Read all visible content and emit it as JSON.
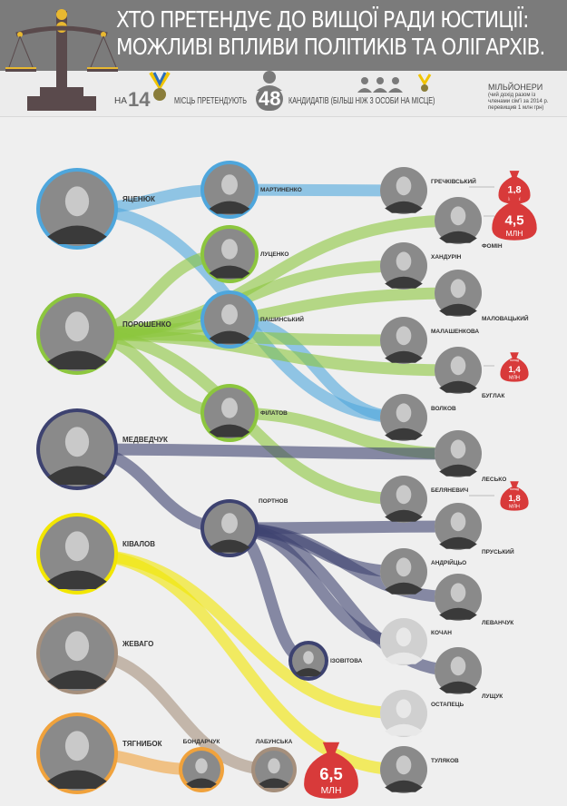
{
  "header": {
    "title_line1": "ХТО ПРЕТЕНДУЄ ДО ВИЩОЇ РАДИ ЮСТИЦІЇ:",
    "title_line2": "МОЖЛИВІ ВПЛИВИ ПОЛІТИКІВ ТА ОЛІГАРХІВ.",
    "logo_icon": "scales-icon"
  },
  "summary": {
    "prefix": "НА",
    "seats": "14",
    "seats_text": "МІСЦЬ ПРЕТЕНДУЮТЬ",
    "candidates": "48",
    "candidates_text": "КАНДИДАТІВ (БІЛЬШ НІЖ 3 ОСОБИ НА МІСЦЕ)",
    "legend_title": "МІЛЬЙОНЕРИ",
    "legend_note": [
      "(чий дохід разом із",
      "членами сім'ї за 2014 р.",
      "перевищив 1 млн грн)"
    ]
  },
  "colors": {
    "header": "#7b7b7b",
    "money": "#d83a3a",
    "yatseniuk": "#4ea6dc",
    "poroshenko": "#8cc63e",
    "medvedchuk": "#3d4270",
    "kivalov": "#f2e600",
    "zhevago": "#a58f7c",
    "tiahnybok": "#f0a23c"
  },
  "politicians": [
    {
      "name": "ЯЦЕНЮК",
      "color": "yatseniuk"
    },
    {
      "name": "ПОРОШЕНКО",
      "color": "poroshenko"
    },
    {
      "name": "МЕДВЕДЧУК",
      "color": "medvedchuk"
    },
    {
      "name": "КІВАЛОВ",
      "color": "kivalov"
    },
    {
      "name": "ЖЕВАГО",
      "color": "zhevago"
    },
    {
      "name": "ТЯГНИБОК",
      "color": "tiahnybok"
    }
  ],
  "intermediaries": [
    {
      "name": "МАРТИНЕНКО",
      "color": "yatseniuk"
    },
    {
      "name": "ЛУЦЕНКО",
      "color": "poroshenko"
    },
    {
      "name": "ПАШИНСЬКИЙ",
      "color": "yatseniuk"
    },
    {
      "name": "ФІЛАТОВ",
      "color": "poroshenko"
    },
    {
      "name": "ПОРТНОВ",
      "color": "medvedchuk"
    },
    {
      "name": "ІЗОВІТОВА",
      "color": "medvedchuk"
    },
    {
      "name": "БОНДАРЧУК",
      "color": "tiahnybok"
    },
    {
      "name": "ЛАБУНСЬКА",
      "color": "zhevago"
    }
  ],
  "candidates": [
    {
      "name": "ГРЕЧКІВСЬКИЙ",
      "money": {
        "prefix": "",
        "value": "1,8",
        "unit": "МЛН"
      }
    },
    {
      "name": "ФОМІН",
      "money": {
        "prefix": "",
        "value": "4,5",
        "unit": "МЛН"
      }
    },
    {
      "name": "ХАНДУРІН"
    },
    {
      "name": "МАЛОВАЦЬКИЙ"
    },
    {
      "name": "МАЛАШЕНКОВА"
    },
    {
      "name": "БУГЛАК",
      "money": {
        "prefix": "понад",
        "value": "1,4",
        "unit": "МЛН"
      }
    },
    {
      "name": "ВОЛКОВ"
    },
    {
      "name": "ЛЕСЬКО"
    },
    {
      "name": "БЕЛЯНЕВИЧ",
      "money": {
        "prefix": "понад",
        "value": "1,8",
        "unit": "МЛН"
      }
    },
    {
      "name": "ПРУСЬКИЙ"
    },
    {
      "name": "АНДРІЙЦЬО"
    },
    {
      "name": "ЛЕВАНЧУК"
    },
    {
      "name": "КОЧАН",
      "no_photo": true
    },
    {
      "name": "ЛУЩУК"
    },
    {
      "name": "ОСТАПЕЦЬ",
      "no_photo": true
    },
    {
      "name": "ТУЛЯКОВ"
    }
  ],
  "labunska_money": {
    "value": "6,5",
    "unit": "МЛН"
  },
  "links": [
    [
      "ЯЦЕНЮК",
      "МАРТИНЕНКО",
      "yatseniuk"
    ],
    [
      "МАРТИНЕНКО",
      "ГРЕЧКІВСЬКИЙ",
      "yatseniuk"
    ],
    [
      "ЯЦЕНЮК",
      "ВОЛКОВ",
      "yatseniuk"
    ],
    [
      "ПАШИНСЬКИЙ",
      "ВОЛКОВ",
      "yatseniuk"
    ],
    [
      "ПОРОШЕНКО",
      "ЛУЦЕНКО",
      "poroshenko"
    ],
    [
      "ПОРОШЕНКО",
      "ФОМІН",
      "poroshenko"
    ],
    [
      "ПОРОШЕНКО",
      "ХАНДУРІН",
      "poroshenko"
    ],
    [
      "ПОРОШЕНКО",
      "МАЛОВАЦЬКИЙ",
      "poroshenko"
    ],
    [
      "ПОРОШЕНКО",
      "МАЛАШЕНКОВА",
      "poroshenko"
    ],
    [
      "ПОРОШЕНКО",
      "БУГЛАК",
      "poroshenko"
    ],
    [
      "ПОРОШЕНКО",
      "ФІЛАТОВ",
      "poroshenko"
    ],
    [
      "ФІЛАТОВ",
      "ЛЕСЬКО",
      "poroshenko"
    ],
    [
      "ПОРОШЕНКО",
      "БЕЛЯНЕВИЧ",
      "poroshenko"
    ],
    [
      "МЕДВЕДЧУК",
      "ПОРТНОВ",
      "medvedchuk"
    ],
    [
      "МЕДВЕДЧУК",
      "ЛЕСЬКО",
      "medvedchuk"
    ],
    [
      "ПОРТНОВ",
      "ПРУСЬКИЙ",
      "medvedchuk"
    ],
    [
      "ПОРТНОВ",
      "АНДРІЙЦЬО",
      "medvedchuk"
    ],
    [
      "ПОРТНОВ",
      "ЛЕВАНЧУК",
      "medvedchuk"
    ],
    [
      "ПОРТНОВ",
      "КОЧАН",
      "medvedchuk"
    ],
    [
      "ПОРТНОВ",
      "ЛУЩУК",
      "medvedchuk"
    ],
    [
      "ПОРТНОВ",
      "ІЗОВІТОВА",
      "medvedchuk"
    ],
    [
      "КІВАЛОВ",
      "ОСТАПЕЦЬ",
      "kivalov"
    ],
    [
      "КІВАЛОВ",
      "ТУЛЯКОВ",
      "kivalov"
    ],
    [
      "ЖЕВАГО",
      "ЛАБУНСЬКА",
      "zhevago"
    ],
    [
      "ТЯГНИБОК",
      "БОНДАРЧУК",
      "tiahnybok"
    ]
  ]
}
